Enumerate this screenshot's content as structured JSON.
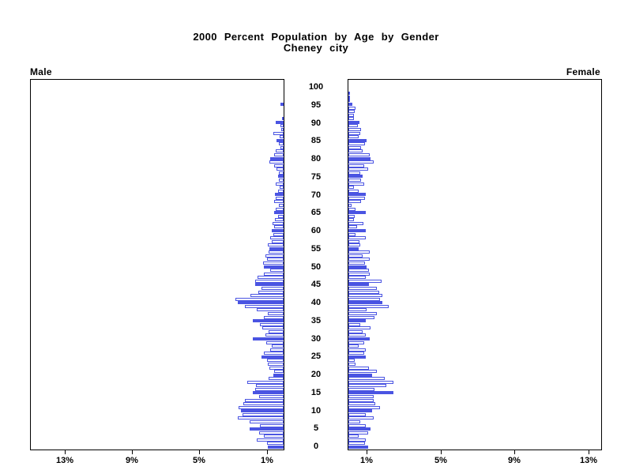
{
  "title": {
    "line1": "2000 Percent Population by Age by Gender",
    "line2": "Cheney city"
  },
  "panel_labels": {
    "male": "Male",
    "female": "Female"
  },
  "chart_data": {
    "type": "bar",
    "variant": "population_pyramid",
    "title": "2000 Percent Population by Age by Gender",
    "subtitle": "Cheney city",
    "unit": "percent of population",
    "grid": false,
    "age_axis": {
      "min": 0,
      "max": 100,
      "tick_interval": 5,
      "tick_labels": [
        "0",
        "5",
        "10",
        "15",
        "20",
        "25",
        "30",
        "35",
        "40",
        "45",
        "50",
        "55",
        "60",
        "65",
        "70",
        "75",
        "80",
        "85",
        "90",
        "95",
        "100"
      ]
    },
    "left_axis": {
      "series_label": "Male",
      "direction": "right_to_left",
      "max_percent": 15.0,
      "ticks": [
        {
          "label": "13%",
          "value": 13
        },
        {
          "label": "9%",
          "value": 9
        },
        {
          "label": "5%",
          "value": 5
        },
        {
          "label": "1%",
          "value": 1
        }
      ]
    },
    "right_axis": {
      "series_label": "Female",
      "direction": "left_to_right",
      "max_percent": 13.7,
      "ticks": [
        {
          "label": "1%",
          "value": 1
        },
        {
          "label": "5%",
          "value": 5
        },
        {
          "label": "9%",
          "value": 9
        },
        {
          "label": "13%",
          "value": 13
        }
      ]
    },
    "series": [
      {
        "name": "Male",
        "side": "left",
        "ages": "index equals age 0-100",
        "values_by_age": [
          0.95,
          1.0,
          1.6,
          1.15,
          1.45,
          2.0,
          1.4,
          2.0,
          2.7,
          2.45,
          2.55,
          2.65,
          2.4,
          2.3,
          1.45,
          1.85,
          1.7,
          1.65,
          2.15,
          0.9,
          0.6,
          0.55,
          0.85,
          0.95,
          1.0,
          1.3,
          1.15,
          0.8,
          0.7,
          1.05,
          1.85,
          1.1,
          0.9,
          1.25,
          1.4,
          1.85,
          1.15,
          0.95,
          1.6,
          2.3,
          2.7,
          2.85,
          1.95,
          1.5,
          1.3,
          1.7,
          1.7,
          1.55,
          1.15,
          0.8,
          1.15,
          1.2,
          1.0,
          1.1,
          0.9,
          0.85,
          0.95,
          0.7,
          0.8,
          0.6,
          0.7,
          0.55,
          0.65,
          0.5,
          0.35,
          0.55,
          0.45,
          0.3,
          0.55,
          0.45,
          0.5,
          0.35,
          0.25,
          0.45,
          0.3,
          0.35,
          0.3,
          0.4,
          0.55,
          0.85,
          0.8,
          0.55,
          0.45,
          0.2,
          0.3,
          0.4,
          0.25,
          0.6,
          0.15,
          0.2,
          0.45,
          0.1,
          0.0,
          0.0,
          0.0,
          0.2,
          0.0,
          0.0,
          0.0,
          0.0,
          0.0
        ]
      },
      {
        "name": "Female",
        "side": "right",
        "ages": "index equals age 0-100",
        "values_by_age": [
          1.05,
          0.9,
          0.95,
          0.55,
          1.05,
          1.2,
          0.95,
          0.65,
          1.35,
          0.95,
          1.3,
          1.7,
          1.45,
          1.35,
          1.35,
          2.45,
          1.4,
          2.05,
          2.45,
          1.95,
          1.3,
          1.55,
          1.1,
          0.4,
          0.35,
          0.95,
          0.85,
          0.95,
          0.55,
          0.85,
          1.15,
          0.95,
          0.75,
          1.2,
          0.65,
          0.95,
          1.4,
          1.55,
          1.0,
          2.2,
          1.85,
          1.7,
          1.85,
          1.65,
          1.55,
          1.1,
          1.8,
          0.95,
          1.15,
          1.1,
          1.0,
          0.9,
          1.15,
          0.75,
          1.15,
          0.55,
          0.65,
          0.6,
          0.95,
          0.4,
          0.95,
          0.45,
          0.8,
          0.3,
          0.35,
          0.95,
          0.4,
          0.15,
          0.7,
          0.9,
          0.95,
          0.55,
          0.3,
          0.85,
          0.7,
          0.75,
          0.65,
          1.05,
          0.85,
          1.35,
          1.2,
          1.15,
          0.75,
          0.7,
          0.9,
          1.0,
          0.55,
          0.65,
          0.7,
          0.5,
          0.6,
          0.3,
          0.28,
          0.34,
          0.4,
          0.2,
          0.1,
          0.1,
          0.1,
          0.0,
          0.0
        ]
      }
    ],
    "style": {
      "bar_fill_color": "#4a54e2",
      "bar_outline_color": "#4a54e2",
      "filled_rule": "ages divisible by 5 drawn solid blue; other ages white with blue outline",
      "axis_color": "#000000",
      "background": "#ffffff"
    }
  }
}
